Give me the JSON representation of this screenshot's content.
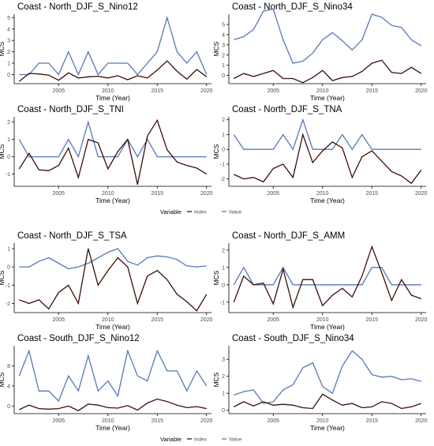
{
  "colors": {
    "index": "#5677b8",
    "value": "#3a0f08",
    "axis": "#000000",
    "tick_text": "#4d4d4d"
  },
  "legend": {
    "title": "Variable",
    "items": [
      "Index",
      "Value"
    ]
  },
  "chart_data": [
    {
      "type": "line",
      "title": "Coast - North_DJF_S_Nino12",
      "xlabel": "Time (Year)",
      "ylabel": "MCS",
      "x": [
        2001,
        2002,
        2003,
        2004,
        2005,
        2006,
        2007,
        2008,
        2009,
        2010,
        2011,
        2012,
        2013,
        2014,
        2015,
        2016,
        2017,
        2018,
        2019,
        2020
      ],
      "xticks": [
        2005,
        2010,
        2015,
        2020
      ],
      "yticks": [
        0,
        1,
        2,
        3,
        4,
        5
      ],
      "ylim": [
        -0.8,
        5.3
      ],
      "series": [
        {
          "name": "Index",
          "values": [
            0,
            0,
            1,
            1,
            0,
            2,
            0,
            2,
            0,
            1,
            1,
            1,
            0,
            1,
            2,
            5,
            2,
            1,
            2,
            0
          ]
        },
        {
          "name": "Value",
          "values": [
            -0.6,
            0.1,
            0.05,
            -0.05,
            -0.5,
            0.15,
            -0.3,
            -0.2,
            -0.15,
            -0.3,
            -0.1,
            -0.45,
            -0.1,
            -0.3,
            0.4,
            1.2,
            0.3,
            -0.4,
            0.45,
            -0.2
          ]
        }
      ]
    },
    {
      "type": "line",
      "title": "Coast - North_DJF_S_Nino34",
      "xlabel": "Time (Year)",
      "ylabel": "MCS",
      "x": [
        2001,
        2002,
        2003,
        2004,
        2005,
        2006,
        2007,
        2008,
        2009,
        2010,
        2011,
        2012,
        2013,
        2014,
        2015,
        2016,
        2017,
        2018,
        2019,
        2020
      ],
      "xticks": [
        2005,
        2010,
        2015,
        2020
      ],
      "yticks": [
        0,
        1,
        2,
        3,
        4,
        5
      ],
      "ylim": [
        -0.8,
        6.0
      ],
      "series": [
        {
          "name": "Index",
          "values": [
            3.5,
            3.8,
            4.5,
            6.3,
            6.5,
            3.5,
            1.2,
            1.4,
            2.2,
            3.5,
            4.2,
            3.4,
            2.5,
            3.5,
            6.0,
            5.7,
            4.9,
            4.7,
            3.5,
            2.9
          ]
        },
        {
          "name": "Value",
          "values": [
            -0.3,
            0.2,
            -0.1,
            0.2,
            0.5,
            -0.3,
            -0.3,
            -0.7,
            -0.2,
            0.5,
            -0.5,
            -0.2,
            -0.1,
            0.4,
            1.2,
            1.5,
            0.3,
            0.2,
            0.8,
            0.2
          ]
        }
      ]
    },
    {
      "type": "line",
      "title": "Coast - North_DJF_S_TNI",
      "xlabel": "Time (Year)",
      "ylabel": "MCS",
      "x": [
        2001,
        2002,
        2003,
        2004,
        2005,
        2006,
        2007,
        2008,
        2009,
        2010,
        2011,
        2012,
        2013,
        2014,
        2015,
        2016,
        2017,
        2018,
        2019,
        2020
      ],
      "xticks": [
        2005,
        2010,
        2015,
        2020
      ],
      "yticks": [
        -1,
        0,
        1,
        2
      ],
      "ylim": [
        -1.7,
        2.3
      ],
      "series": [
        {
          "name": "Index",
          "values": [
            1,
            0,
            0,
            0,
            0,
            1,
            0,
            2,
            0,
            0,
            0,
            1,
            0,
            1,
            0,
            0,
            0,
            0,
            0,
            0
          ]
        },
        {
          "name": "Value",
          "values": [
            -0.7,
            0.2,
            -0.75,
            -0.8,
            -0.5,
            0.5,
            -1.2,
            1.0,
            0.8,
            -0.7,
            0.3,
            1.0,
            -1.6,
            1.2,
            2.1,
            0.4,
            -0.3,
            -0.5,
            -0.65,
            -1.0
          ]
        }
      ]
    },
    {
      "type": "line",
      "title": "Coast - North_DJF_S_TNA",
      "xlabel": "Time (Year)",
      "ylabel": "MCS",
      "x": [
        2001,
        2002,
        2003,
        2004,
        2005,
        2006,
        2007,
        2008,
        2009,
        2010,
        2011,
        2012,
        2013,
        2014,
        2015,
        2016,
        2017,
        2018,
        2019,
        2020
      ],
      "xticks": [
        2005,
        2010,
        2015,
        2020
      ],
      "yticks": [
        -2,
        -1,
        0,
        1,
        2
      ],
      "ylim": [
        -2.5,
        2.2
      ],
      "series": [
        {
          "name": "Index",
          "values": [
            1,
            0,
            0,
            0,
            0,
            1,
            0,
            2,
            0,
            0,
            0,
            1,
            0,
            1,
            0,
            0,
            0,
            0,
            0,
            0
          ]
        },
        {
          "name": "Value",
          "values": [
            -1.7,
            -2.0,
            -1.9,
            -2.2,
            -1.3,
            -1.0,
            -1.9,
            1.0,
            -0.9,
            -0.1,
            0.5,
            0.1,
            -1.9,
            -0.5,
            -0.1,
            -0.8,
            -1.5,
            -1.8,
            -2.3,
            -1.4
          ]
        }
      ]
    },
    {
      "type": "line",
      "title": "Coast - North_DJF_S_TSA",
      "xlabel": "Time (Year)",
      "ylabel": "MCS",
      "x": [
        2001,
        2002,
        2003,
        2004,
        2005,
        2006,
        2007,
        2008,
        2009,
        2010,
        2011,
        2012,
        2013,
        2014,
        2015,
        2016,
        2017,
        2018,
        2019,
        2020
      ],
      "xticks": [
        2005,
        2010,
        2015,
        2020
      ],
      "yticks": [
        -2,
        -1,
        0,
        1
      ],
      "ylim": [
        -2.5,
        1.3
      ],
      "series": [
        {
          "name": "Index",
          "values": [
            0,
            0,
            0.3,
            0.5,
            0.2,
            -0.1,
            0,
            0.2,
            0.5,
            0.8,
            1.0,
            0.3,
            0.1,
            0.5,
            0.6,
            0.55,
            0.4,
            0.05,
            0,
            0.05
          ]
        },
        {
          "name": "Value",
          "values": [
            -1.8,
            -2.0,
            -1.8,
            -2.3,
            -1.4,
            -1.0,
            -2.0,
            1.0,
            -1.0,
            -0.2,
            0.5,
            0.0,
            -2.0,
            -0.5,
            -0.2,
            -0.7,
            -1.5,
            -1.9,
            -2.4,
            -1.5
          ]
        }
      ]
    },
    {
      "type": "line",
      "title": "Coast - North_DJF_S_AMM",
      "xlabel": "Time (Year)",
      "ylabel": "MCS",
      "x": [
        2001,
        2002,
        2003,
        2004,
        2005,
        2006,
        2007,
        2008,
        2009,
        2010,
        2011,
        2012,
        2013,
        2014,
        2015,
        2016,
        2017,
        2018,
        2019,
        2020
      ],
      "xticks": [
        2005,
        2010,
        2015,
        2020
      ],
      "yticks": [
        -1,
        0,
        1,
        2
      ],
      "ylim": [
        -1.6,
        2.4
      ],
      "series": [
        {
          "name": "Index",
          "values": [
            0,
            1,
            0,
            0,
            0,
            1,
            0,
            0,
            0,
            0,
            0,
            0,
            0,
            0,
            1,
            1,
            0,
            0,
            0,
            0
          ]
        },
        {
          "name": "Value",
          "values": [
            -1.0,
            0.5,
            0.0,
            0.1,
            -1.1,
            0.9,
            -1.3,
            0.3,
            0.3,
            -1.2,
            -0.6,
            -0.2,
            -0.7,
            0.5,
            2.2,
            0.7,
            -0.9,
            0.3,
            -0.6,
            -0.8
          ]
        }
      ]
    },
    {
      "type": "line",
      "title": "Coast - South_DJF_S_Nino12",
      "xlabel": "Time (Year)",
      "ylabel": "MCS",
      "x": [
        2001,
        2002,
        2003,
        2004,
        2005,
        2006,
        2007,
        2008,
        2009,
        2010,
        2011,
        2012,
        2013,
        2014,
        2015,
        2016,
        2017,
        2018,
        2019,
        2020
      ],
      "xticks": [
        2005,
        2010,
        2015,
        2020
      ],
      "yticks": [
        0,
        4,
        8
      ],
      "ylim": [
        -1.5,
        12.0
      ],
      "series": [
        {
          "name": "Index",
          "values": [
            6,
            11,
            3,
            3,
            1,
            6,
            3,
            10,
            3,
            5,
            2,
            11,
            6,
            5,
            11,
            7,
            7,
            3,
            7,
            4
          ]
        },
        {
          "name": "Value",
          "values": [
            -0.7,
            0.2,
            -0.5,
            -0.6,
            -0.5,
            0.0,
            -0.9,
            0.4,
            0.2,
            -0.3,
            -0.4,
            0.1,
            -0.8,
            0.6,
            1.4,
            0.9,
            0.2,
            -0.3,
            -0.1,
            -0.5
          ]
        }
      ]
    },
    {
      "type": "line",
      "title": "Coast - South_DJF_S_Nino34",
      "xlabel": "Time (Year)",
      "ylabel": "MCS",
      "x": [
        2001,
        2002,
        2003,
        2004,
        2005,
        2006,
        2007,
        2008,
        2009,
        2010,
        2011,
        2012,
        2013,
        2014,
        2015,
        2016,
        2017,
        2018,
        2019,
        2020
      ],
      "xticks": [
        2005,
        2010,
        2015,
        2020
      ],
      "yticks": [
        0,
        1,
        2,
        3
      ],
      "ylim": [
        -0.2,
        3.8
      ],
      "series": [
        {
          "name": "Index",
          "values": [
            0.9,
            1.1,
            1.2,
            0.4,
            0.5,
            1.2,
            1.5,
            2.5,
            2.8,
            1.4,
            1.0,
            2.6,
            3.5,
            3.0,
            2.1,
            1.95,
            2.0,
            1.8,
            1.85,
            1.7
          ]
        },
        {
          "name": "Value",
          "values": [
            0.2,
            0.5,
            0.25,
            0.5,
            0.3,
            0.35,
            0.3,
            0.15,
            0.1,
            0.95,
            0.6,
            0.3,
            0.4,
            0.15,
            0.2,
            0.5,
            0.4,
            0.1,
            0.2,
            0.4
          ]
        }
      ]
    }
  ]
}
